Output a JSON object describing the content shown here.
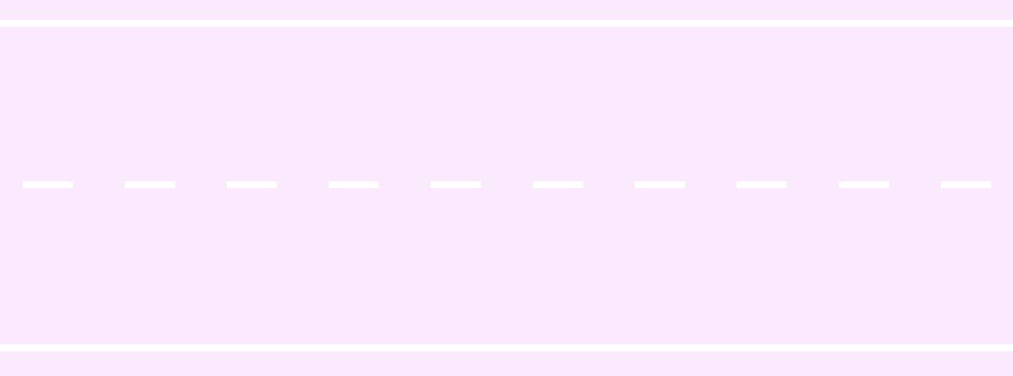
{
  "colors": {
    "panel": "#fbeafe",
    "separator": "#ffffff",
    "dash": "#ffffff"
  },
  "dashes": [
    {
      "id": "dash-1"
    },
    {
      "id": "dash-2"
    },
    {
      "id": "dash-3"
    },
    {
      "id": "dash-4"
    },
    {
      "id": "dash-5"
    },
    {
      "id": "dash-6"
    },
    {
      "id": "dash-7"
    },
    {
      "id": "dash-8"
    },
    {
      "id": "dash-9"
    },
    {
      "id": "dash-10"
    }
  ]
}
